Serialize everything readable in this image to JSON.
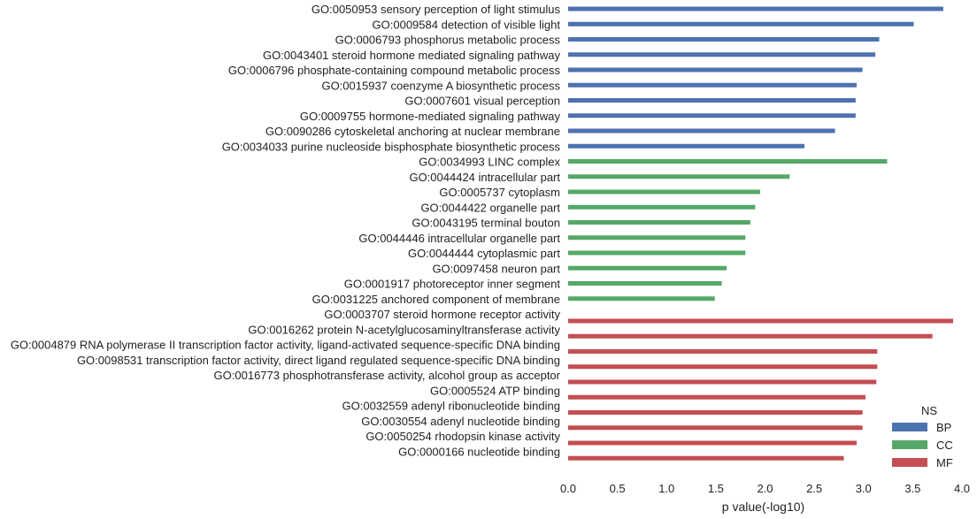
{
  "chart_data": {
    "type": "bar",
    "orientation": "horizontal",
    "xlabel": "p value(-log10)",
    "xlim": [
      0,
      4
    ],
    "xticks": [
      "0.0",
      "0.5",
      "1.0",
      "1.5",
      "2.0",
      "2.5",
      "3.0",
      "3.5",
      "4.0"
    ],
    "grid": false,
    "legend": {
      "title": "NS",
      "position": "bottom-right",
      "entries": [
        {
          "name": "BP",
          "color": "#4c72b0"
        },
        {
          "name": "CC",
          "color": "#55a868"
        },
        {
          "name": "MF",
          "color": "#c44e52"
        }
      ]
    },
    "categories": [
      "GO:0050953 sensory perception of light stimulus",
      "GO:0009584 detection of visible light",
      "GO:0006793 phosphorus metabolic process",
      "GO:0043401 steroid hormone mediated signaling pathway",
      "GO:0006796 phosphate-containing compound metabolic process",
      "GO:0015937 coenzyme A biosynthetic process",
      "GO:0007601 visual perception",
      "GO:0009755 hormone-mediated signaling pathway",
      "GO:0090286 cytoskeletal anchoring at nuclear membrane",
      "GO:0034033 purine nucleoside bisphosphate biosynthetic process",
      "GO:0034993 LINC complex",
      "GO:0044424 intracellular part",
      "GO:0005737 cytoplasm",
      "GO:0044422 organelle part",
      "GO:0043195 terminal bouton",
      "GO:0044446 intracellular organelle part",
      "GO:0044444 cytoplasmic part",
      "GO:0097458 neuron part",
      "GO:0001917 photoreceptor inner segment",
      "GO:0031225 anchored component of membrane",
      "GO:0003707 steroid hormone receptor activity",
      "GO:0016262 protein N-acetylglucosaminyltransferase activity",
      "GO:0004879 RNA polymerase II transcription factor activity, ligand-activated sequence-specific DNA binding",
      "GO:0098531 transcription factor activity, direct ligand regulated sequence-specific DNA binding",
      "GO:0016773 phosphotransferase activity, alcohol group as acceptor",
      "GO:0005524 ATP binding",
      "GO:0032559 adenyl ribonucleotide binding",
      "GO:0030554 adenyl nucleotide binding",
      "GO:0050254 rhodopsin kinase activity",
      "GO:0000166 nucleotide binding"
    ],
    "groups": [
      "BP",
      "BP",
      "BP",
      "BP",
      "BP",
      "BP",
      "BP",
      "BP",
      "BP",
      "BP",
      "CC",
      "CC",
      "CC",
      "CC",
      "CC",
      "CC",
      "CC",
      "CC",
      "CC",
      "CC",
      "MF",
      "MF",
      "MF",
      "MF",
      "MF",
      "MF",
      "MF",
      "MF",
      "MF",
      "MF"
    ],
    "values": [
      3.81,
      3.51,
      3.16,
      3.12,
      2.99,
      2.93,
      2.92,
      2.92,
      2.71,
      2.4,
      3.24,
      2.25,
      1.95,
      1.9,
      1.85,
      1.8,
      1.8,
      1.61,
      1.56,
      1.49,
      3.91,
      3.7,
      3.14,
      3.14,
      3.13,
      3.02,
      2.99,
      2.99,
      2.93,
      2.8
    ]
  }
}
